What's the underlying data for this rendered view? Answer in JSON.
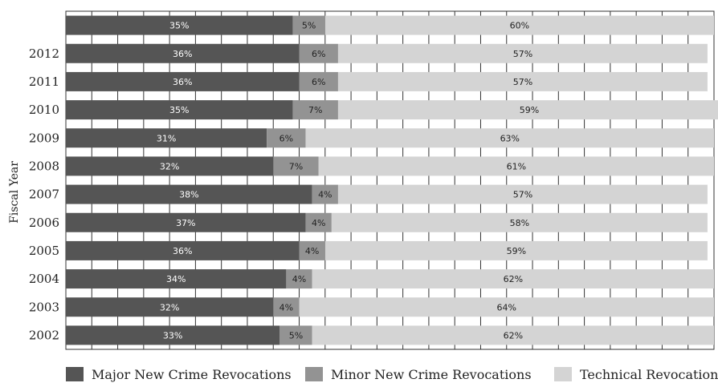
{
  "chart_data": {
    "type": "bar",
    "orientation": "horizontal",
    "stacked": true,
    "ylabel": "Fiscal Year",
    "categories": [
      "",
      "2012",
      "2011",
      "2010",
      "2009",
      "2008",
      "2007",
      "2006",
      "2005",
      "2004",
      "2003",
      "2002"
    ],
    "xlim": [
      0,
      100
    ],
    "grid": true,
    "legend_position": "bottom",
    "series": [
      {
        "name": "Major New Crime Revocations",
        "color": "#555555",
        "values": [
          35,
          36,
          36,
          35,
          31,
          32,
          38,
          37,
          36,
          34,
          32,
          33
        ]
      },
      {
        "name": "Minor New Crime Revocations",
        "color": "#939393",
        "values": [
          5,
          6,
          6,
          7,
          6,
          7,
          4,
          4,
          4,
          4,
          4,
          5
        ]
      },
      {
        "name": "Technical Revocations",
        "color": "#d4d4d4",
        "values": [
          60,
          57,
          57,
          59,
          63,
          61,
          57,
          58,
          59,
          62,
          64,
          62
        ]
      }
    ]
  }
}
